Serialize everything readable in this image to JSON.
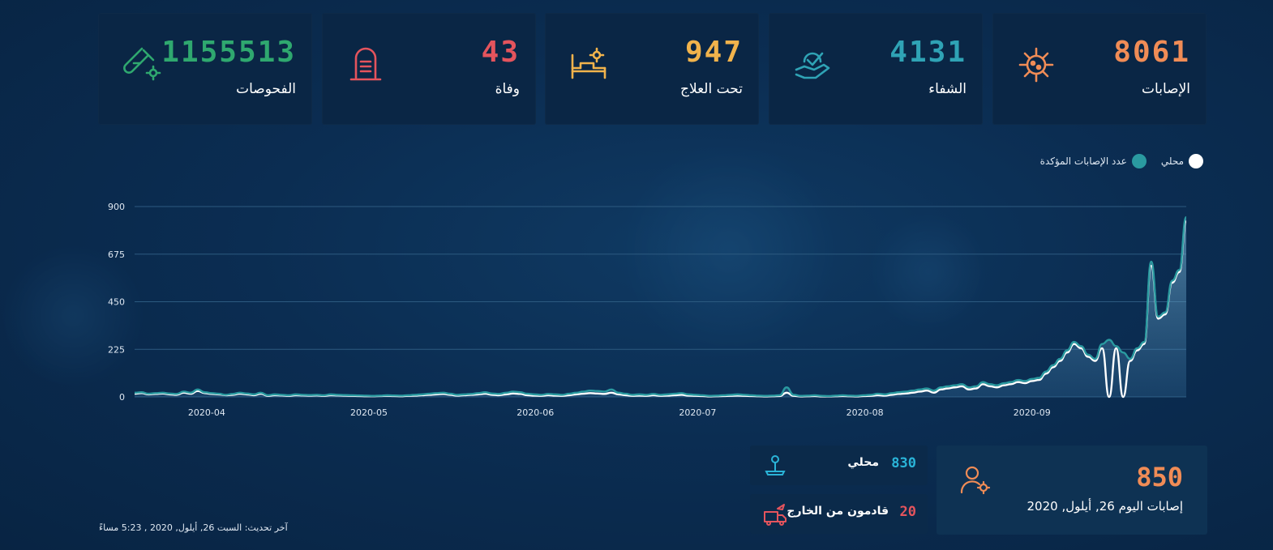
{
  "stats": [
    {
      "key": "cases",
      "value": "8061",
      "label": "الإصابات",
      "color": "#f08c56",
      "icon": "virus-icon"
    },
    {
      "key": "recovered",
      "value": "4131",
      "label": "الشفاء",
      "color": "#2fa3b5",
      "icon": "hand-heart-icon"
    },
    {
      "key": "treatment",
      "value": "947",
      "label": "تحت العلاج",
      "color": "#f1b34c",
      "icon": "hospital-bed-icon"
    },
    {
      "key": "deaths",
      "value": "43",
      "label": "وفاة",
      "color": "#e4545d",
      "icon": "tombstone-icon"
    },
    {
      "key": "tests",
      "value": "1155513",
      "label": "الفحوصات",
      "color": "#2fa86f",
      "icon": "test-tube-icon"
    }
  ],
  "legend": {
    "local": {
      "label": "محلي",
      "color": "#ffffff"
    },
    "confirmed": {
      "label": "عدد الإصابات المؤكدة",
      "color": "#2a9aa0"
    }
  },
  "chart_data": {
    "type": "area",
    "x_ticks": [
      "2020-04",
      "2020-05",
      "2020-06",
      "2020-07",
      "2020-08",
      "2020-09"
    ],
    "y_ticks": [
      "900",
      "675",
      "450",
      "225",
      "0"
    ],
    "ylim": [
      0,
      900
    ],
    "series": [
      {
        "name": "عدد الإصابات المؤكدة",
        "color": "#2a9aa0",
        "values": [
          20,
          22,
          15,
          18,
          20,
          16,
          14,
          25,
          20,
          35,
          22,
          18,
          15,
          10,
          14,
          20,
          16,
          12,
          20,
          8,
          12,
          10,
          8,
          12,
          10,
          9,
          10,
          8,
          12,
          10,
          9,
          8,
          7,
          6,
          5,
          6,
          8,
          7,
          6,
          8,
          10,
          12,
          15,
          18,
          20,
          15,
          10,
          12,
          14,
          18,
          22,
          16,
          14,
          20,
          25,
          22,
          15,
          12,
          10,
          14,
          12,
          10,
          15,
          20,
          25,
          30,
          28,
          25,
          35,
          20,
          15,
          10,
          12,
          10,
          14,
          10,
          12,
          15,
          18,
          12,
          10,
          8,
          5,
          6,
          8,
          10,
          12,
          10,
          8,
          6,
          5,
          6,
          8,
          45,
          10,
          5,
          6,
          8,
          5,
          4,
          6,
          8,
          6,
          5,
          8,
          10,
          15,
          12,
          18,
          22,
          25,
          30,
          35,
          40,
          30,
          45,
          50,
          55,
          60,
          45,
          50,
          70,
          60,
          55,
          65,
          70,
          80,
          75,
          85,
          90,
          120,
          150,
          180,
          220,
          260,
          240,
          200,
          180,
          250,
          270,
          240,
          210,
          180,
          230,
          260,
          640,
          380,
          400,
          550,
          600,
          850
        ]
      },
      {
        "name": "محلي",
        "color": "#ffffff",
        "values": [
          15,
          18,
          12,
          14,
          16,
          12,
          10,
          20,
          15,
          28,
          18,
          14,
          12,
          8,
          10,
          15,
          12,
          8,
          15,
          5,
          8,
          7,
          5,
          8,
          7,
          6,
          7,
          5,
          8,
          7,
          6,
          5,
          4,
          3,
          3,
          4,
          5,
          4,
          3,
          5,
          6,
          8,
          10,
          12,
          14,
          10,
          6,
          8,
          10,
          12,
          15,
          10,
          8,
          12,
          16,
          14,
          8,
          6,
          5,
          8,
          6,
          5,
          8,
          12,
          15,
          18,
          16,
          14,
          20,
          12,
          8,
          5,
          6,
          5,
          8,
          5,
          6,
          8,
          10,
          6,
          5,
          4,
          2,
          3,
          4,
          5,
          6,
          5,
          4,
          3,
          2,
          3,
          4,
          20,
          5,
          2,
          3,
          4,
          2,
          2,
          3,
          4,
          3,
          2,
          4,
          5,
          8,
          6,
          10,
          14,
          16,
          20,
          25,
          30,
          20,
          35,
          40,
          45,
          50,
          35,
          40,
          60,
          50,
          45,
          55,
          60,
          70,
          65,
          75,
          80,
          110,
          140,
          170,
          210,
          250,
          230,
          190,
          170,
          230,
          0,
          230,
          0,
          170,
          220,
          250,
          620,
          370,
          390,
          540,
          590,
          830
        ]
      }
    ]
  },
  "today": {
    "value": "850",
    "label": "إصابات اليوم 26, أيلول, 2020",
    "icon": "user-gear-icon"
  },
  "breakdown": [
    {
      "value": "830",
      "label": "محلي",
      "color": "#2ab4d8",
      "icon": "map-pin-icon"
    },
    {
      "value": "20",
      "label": "قادمون من الخارج",
      "color": "#e4545d",
      "icon": "airplane-truck-icon"
    }
  ],
  "updated": "آخر تحديث: السبت 26, أيلول, 2020 , 5:23 مساءً"
}
